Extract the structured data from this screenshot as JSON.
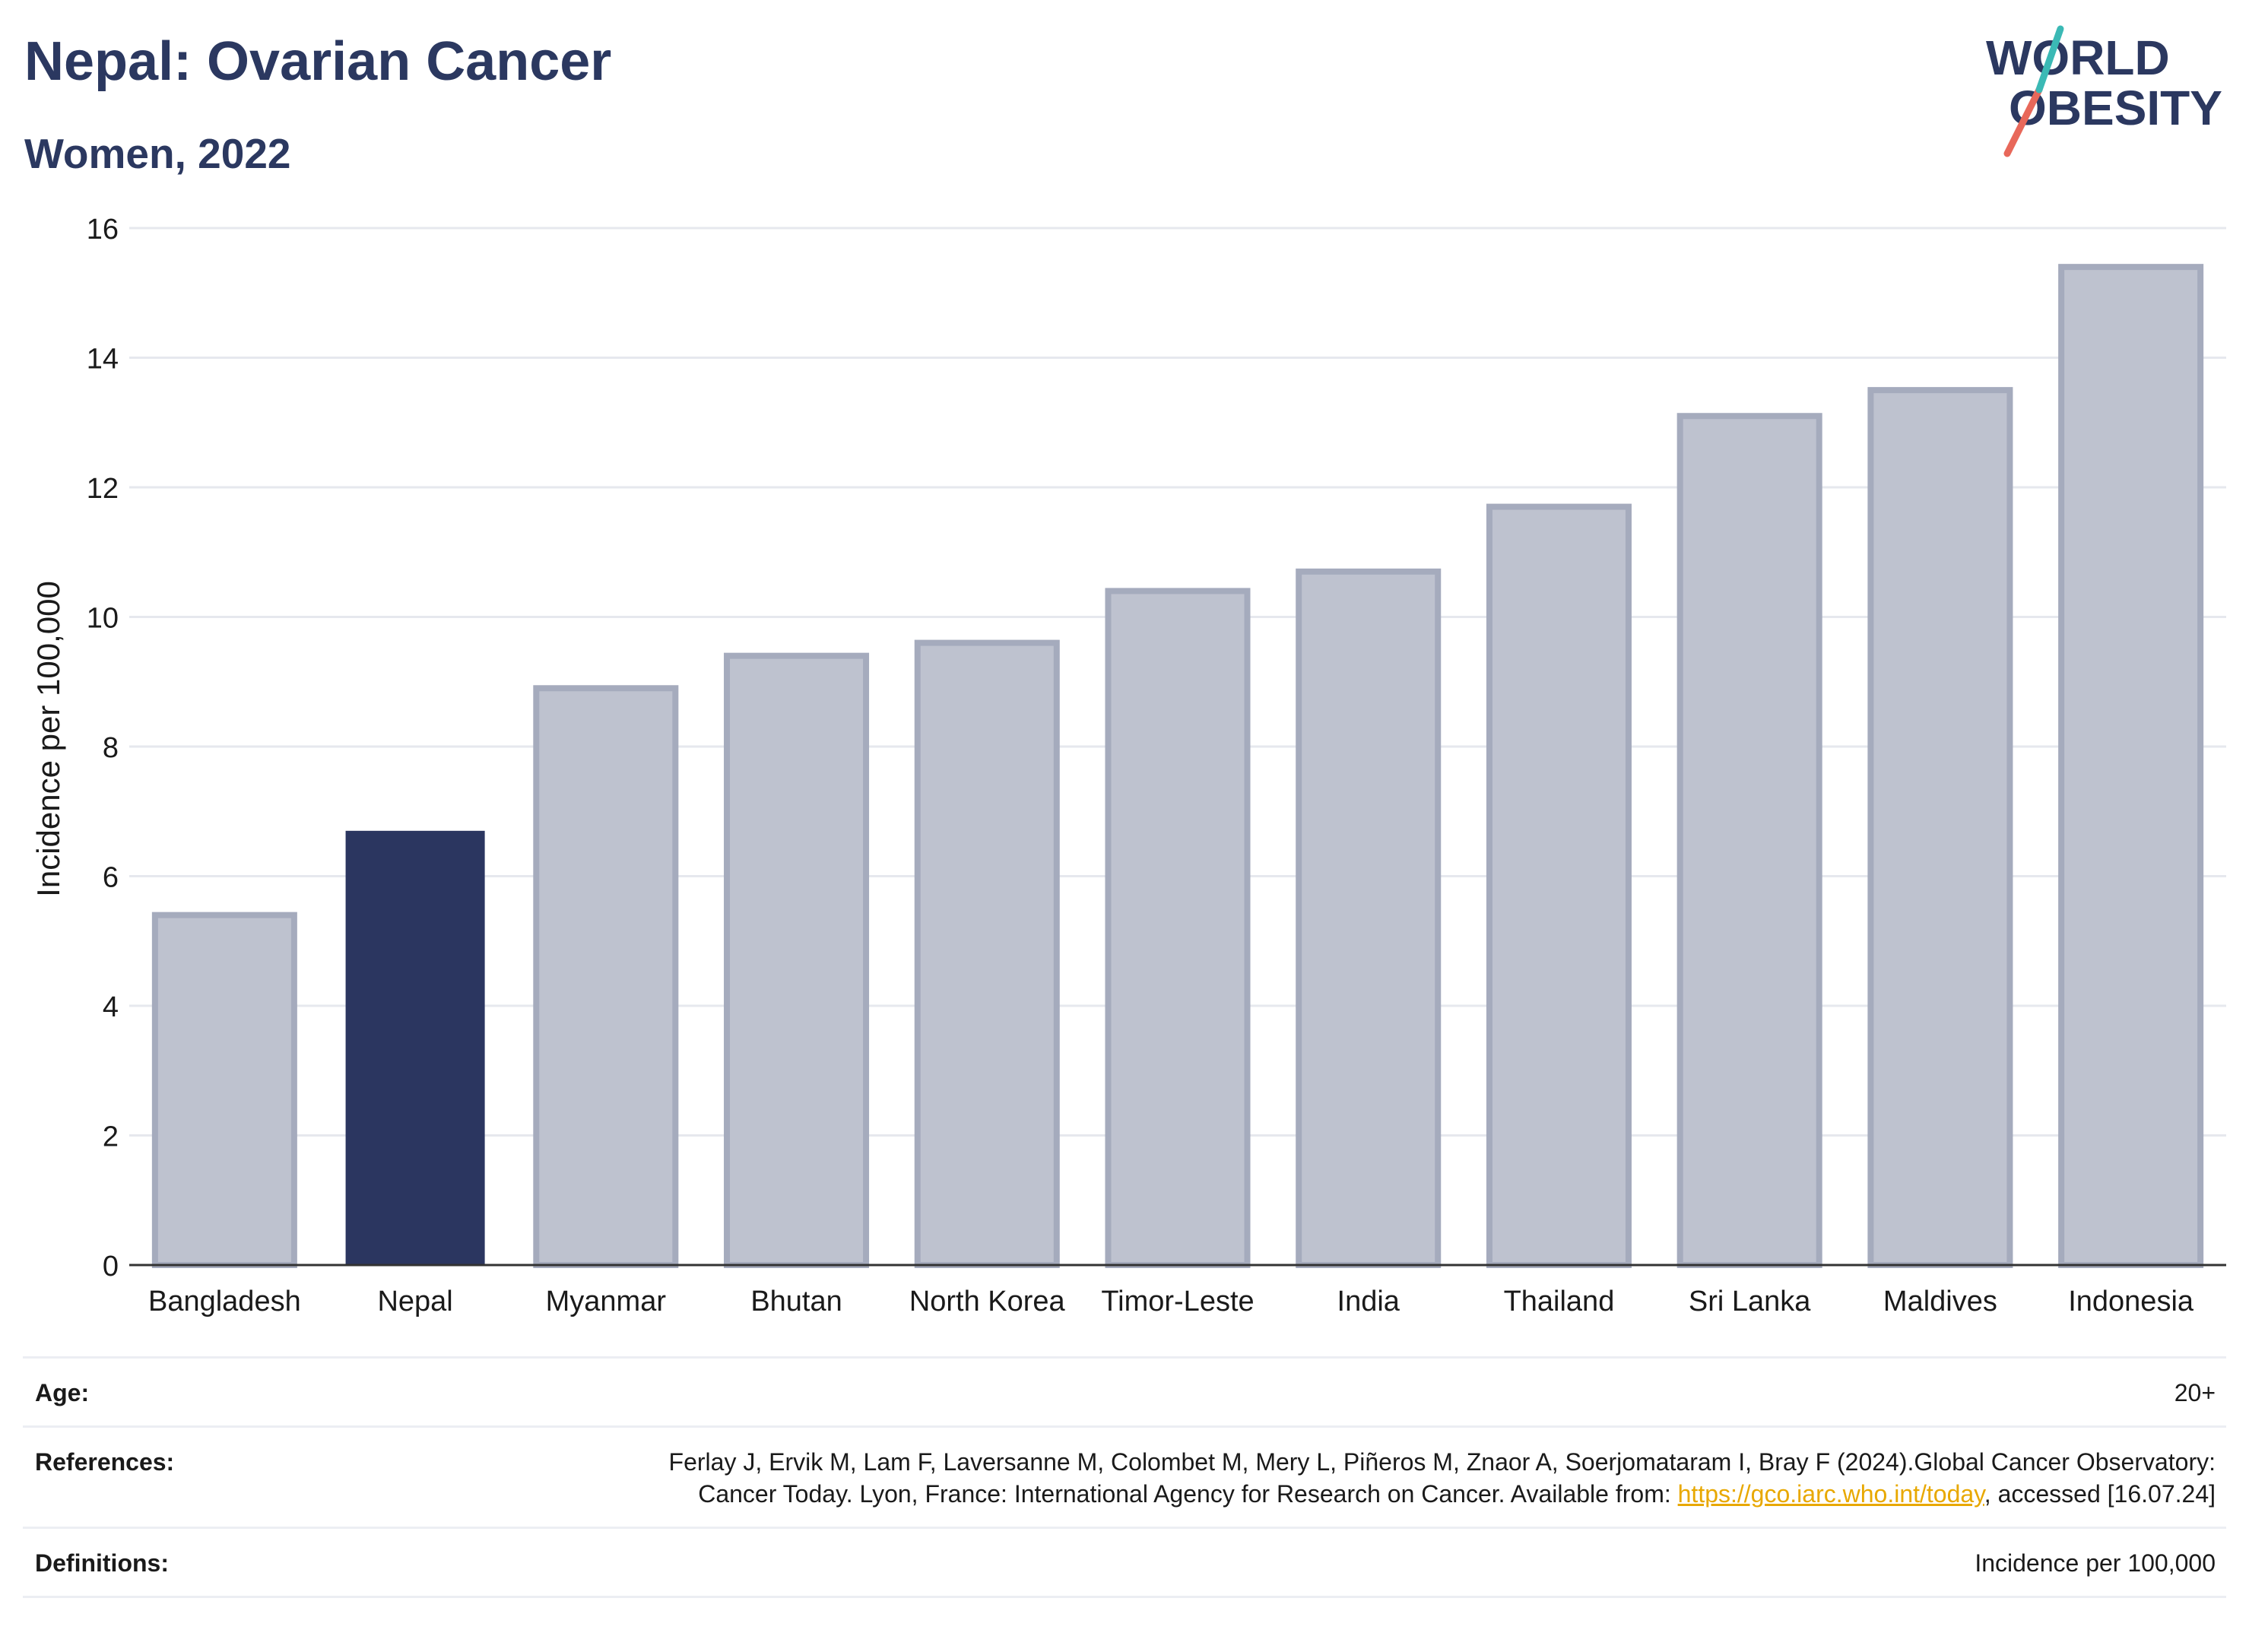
{
  "header": {
    "title": "Nepal: Ovarian Cancer",
    "subtitle": "Women, 2022",
    "logo_text_line1": "WORLD",
    "logo_text_line2": "OBESITY"
  },
  "chart_data": {
    "type": "bar",
    "categories": [
      "Bangladesh",
      "Nepal",
      "Myanmar",
      "Bhutan",
      "North Korea",
      "Timor-Leste",
      "India",
      "Thailand",
      "Sri Lanka",
      "Maldives",
      "Indonesia"
    ],
    "values": [
      5.4,
      6.7,
      8.9,
      9.4,
      9.6,
      10.4,
      10.7,
      11.7,
      13.1,
      13.5,
      15.4
    ],
    "highlight": "Nepal",
    "title": "Nepal: Ovarian Cancer",
    "subtitle": "Women, 2022",
    "xlabel": "",
    "ylabel": "Incidence per 100,000",
    "ylim": [
      0,
      16
    ],
    "yticks": [
      0,
      2,
      4,
      6,
      8,
      10,
      12,
      14,
      16
    ],
    "grid": true,
    "colors": {
      "bar": "#bec2cf",
      "bar_border": "#a5abbd",
      "highlight": "#2b3660"
    }
  },
  "info_table": {
    "age_label": "Age:",
    "age_value": "20+",
    "references_label": "References:",
    "references_text_before": "Ferlay J, Ervik M, Lam F, Laversanne M, Colombet M, Mery L, Piñeros M, Znaor A, Soerjomataram I, Bray F (2024).Global Cancer Observatory: Cancer Today. Lyon, France: International Agency for Research on Cancer. Available from: ",
    "references_link": "https://gco.iarc.who.int/today",
    "references_text_after": ", accessed [16.07.24]",
    "definitions_label": "Definitions:",
    "definitions_value": "Incidence per 100,000"
  }
}
